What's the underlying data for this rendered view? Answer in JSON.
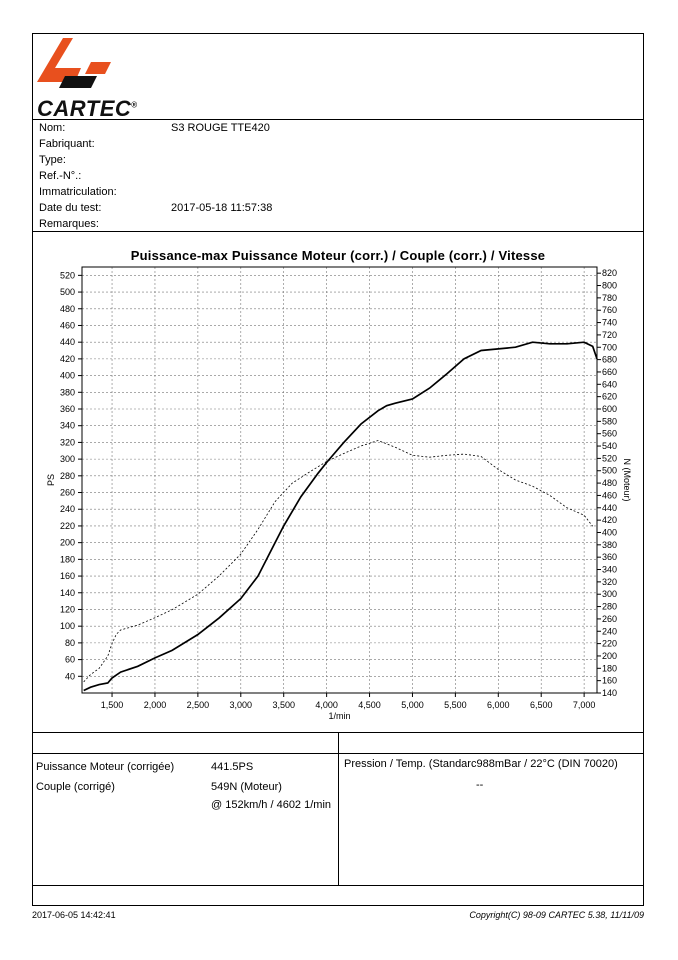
{
  "header": {
    "logo_text": "CARTEC",
    "logo_reg": "®"
  },
  "info": {
    "rows": [
      {
        "label": "Nom:",
        "value": "S3 ROUGE TTE420"
      },
      {
        "label": "Fabriquant:",
        "value": ""
      },
      {
        "label": "Type:",
        "value": ""
      },
      {
        "label": "Ref.-N°.:",
        "value": ""
      },
      {
        "label": "Immatriculation:",
        "value": ""
      },
      {
        "label": "Date du test:",
        "value": "2017-05-18 11:57:38"
      },
      {
        "label": "Remarques:",
        "value": ""
      }
    ]
  },
  "results": {
    "power_label": "Puissance Moteur (corrigée)",
    "power_value": "441.5PS",
    "torque_label": "Couple (corrigé)",
    "torque_value": "549N (Moteur)",
    "torque_at": "@ 152km/h / 4602 1/min",
    "conditions": "Pression / Temp. (Standarc988mBar / 22°C   (DIN 70020)",
    "conditions_value": "--"
  },
  "footer": {
    "date": "2017-06-05 14:42:41",
    "copyright": "Copyright(C) 98-09 CARTEC 5.38, 11/11/09"
  },
  "chart_data": {
    "type": "line",
    "title": "Puissance-max Puissance Moteur (corr.) / Couple (corr.) / Vitesse",
    "xlabel": "1/min",
    "ylabel_left": "PS",
    "ylabel_right": "N (Moteur)",
    "xlim": [
      1150,
      7150
    ],
    "ylim_left": [
      20,
      530
    ],
    "ylim_right": [
      140,
      830
    ],
    "x_ticks": [
      1500,
      2000,
      2500,
      3000,
      3500,
      4000,
      4500,
      5000,
      5500,
      6000,
      6500,
      7000
    ],
    "x_tick_labels": [
      "1,500",
      "2,000",
      "2,500",
      "3,000",
      "3,500",
      "4,000",
      "4,500",
      "5,000",
      "5,500",
      "6,000",
      "6,500",
      "7,000"
    ],
    "y_left_ticks": [
      40,
      60,
      80,
      100,
      120,
      140,
      160,
      180,
      200,
      220,
      240,
      260,
      280,
      300,
      320,
      340,
      360,
      380,
      400,
      420,
      440,
      460,
      480,
      500,
      520
    ],
    "y_right_ticks": [
      140,
      160,
      180,
      200,
      220,
      240,
      260,
      280,
      300,
      320,
      340,
      360,
      380,
      400,
      420,
      440,
      460,
      480,
      500,
      520,
      540,
      560,
      580,
      600,
      620,
      640,
      660,
      680,
      700,
      720,
      740,
      760,
      780,
      800,
      820
    ],
    "grid": true,
    "series": [
      {
        "name": "",
        "axis": "left",
        "style": "solid",
        "x": [
          1170,
          1250,
          1350,
          1450,
          1500,
          1600,
          1800,
          2000,
          2200,
          2500,
          2750,
          3000,
          3200,
          3400,
          3500,
          3700,
          3900,
          4000,
          4200,
          4400,
          4600,
          4700,
          4800,
          5000,
          5200,
          5400,
          5600,
          5800,
          6000,
          6200,
          6400,
          6600,
          6800,
          7000,
          7100,
          7150
        ],
        "y": [
          23,
          27,
          30,
          32,
          38,
          45,
          52,
          62,
          71,
          90,
          110,
          133,
          160,
          200,
          220,
          255,
          283,
          296,
          320,
          342,
          358,
          364,
          367,
          372,
          385,
          402,
          420,
          430,
          432,
          434,
          440,
          438,
          438,
          440,
          435,
          420
        ]
      },
      {
        "name": "",
        "axis": "right",
        "style": "dashed",
        "x": [
          1170,
          1250,
          1350,
          1450,
          1500,
          1550,
          1600,
          1800,
          2000,
          2200,
          2500,
          2750,
          3000,
          3200,
          3400,
          3600,
          3800,
          4000,
          4200,
          4400,
          4600,
          4800,
          5000,
          5200,
          5400,
          5600,
          5800,
          6000,
          6200,
          6400,
          6600,
          6800,
          7000,
          7100
        ],
        "y": [
          158,
          170,
          180,
          200,
          220,
          235,
          242,
          250,
          262,
          275,
          300,
          330,
          365,
          405,
          450,
          480,
          498,
          515,
          528,
          540,
          549,
          538,
          525,
          522,
          525,
          527,
          523,
          502,
          485,
          475,
          460,
          440,
          428,
          410
        ]
      }
    ]
  }
}
